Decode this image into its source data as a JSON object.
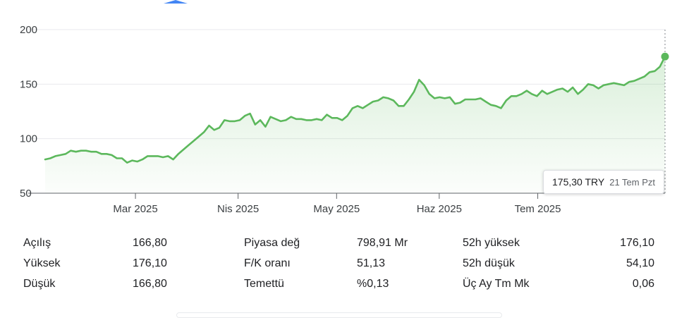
{
  "chart_data": {
    "type": "area",
    "y_ticks": [
      "200",
      "150",
      "100",
      "50"
    ],
    "ylim": [
      50,
      200
    ],
    "x_ticks": [
      {
        "label": "Mar 2025",
        "x": 22
      },
      {
        "label": "Nis 2025",
        "x": 47
      },
      {
        "label": "May 2025",
        "x": 71
      },
      {
        "label": "Haz 2025",
        "x": 96
      },
      {
        "label": "Tem 2025",
        "x": 120
      }
    ],
    "x_range": [
      0,
      151
    ],
    "line_color": "#5cb85c",
    "values": [
      81,
      82,
      84,
      85,
      86,
      89,
      88,
      89,
      89,
      88,
      88,
      86,
      86,
      85,
      82,
      82,
      78,
      80,
      79,
      81,
      84,
      84,
      84,
      83,
      84,
      81,
      86,
      90,
      94,
      98,
      102,
      106,
      112,
      108,
      110,
      117,
      116,
      116,
      117,
      121,
      123,
      113,
      117,
      111,
      120,
      118,
      116,
      117,
      120,
      118,
      118,
      117,
      117,
      118,
      117,
      122,
      119,
      119,
      117,
      121,
      128,
      130,
      128,
      131,
      134,
      135,
      138,
      137,
      135,
      130,
      130,
      136,
      143,
      154,
      149,
      141,
      137,
      138,
      137,
      138,
      132,
      133,
      136,
      136,
      136,
      137,
      134,
      131,
      130,
      128,
      135,
      139,
      139,
      141,
      144,
      141,
      139,
      144,
      141,
      143,
      145,
      146,
      143,
      147,
      141,
      145,
      150,
      149,
      146,
      149,
      150,
      151,
      150,
      149,
      152,
      153,
      155,
      157,
      161,
      162,
      166,
      175.3
    ],
    "tooltip": {
      "price": "175,30 TRY",
      "date": "21 Tem Pzt"
    }
  },
  "stats": [
    {
      "label": "Açılış",
      "value": "166,80"
    },
    {
      "label": "Piyasa değ",
      "value": "798,91 Mr"
    },
    {
      "label": "52h yüksek",
      "value": "176,10"
    },
    {
      "label": "Yüksek",
      "value": "176,10"
    },
    {
      "label": "F/K oranı",
      "value": "51,13"
    },
    {
      "label": "52h düşük",
      "value": "54,10"
    },
    {
      "label": "Düşük",
      "value": "166,80"
    },
    {
      "label": "Temettü",
      "value": "%0,13"
    },
    {
      "label": "Üç Ay Tm Mk",
      "value": "0,06"
    }
  ]
}
